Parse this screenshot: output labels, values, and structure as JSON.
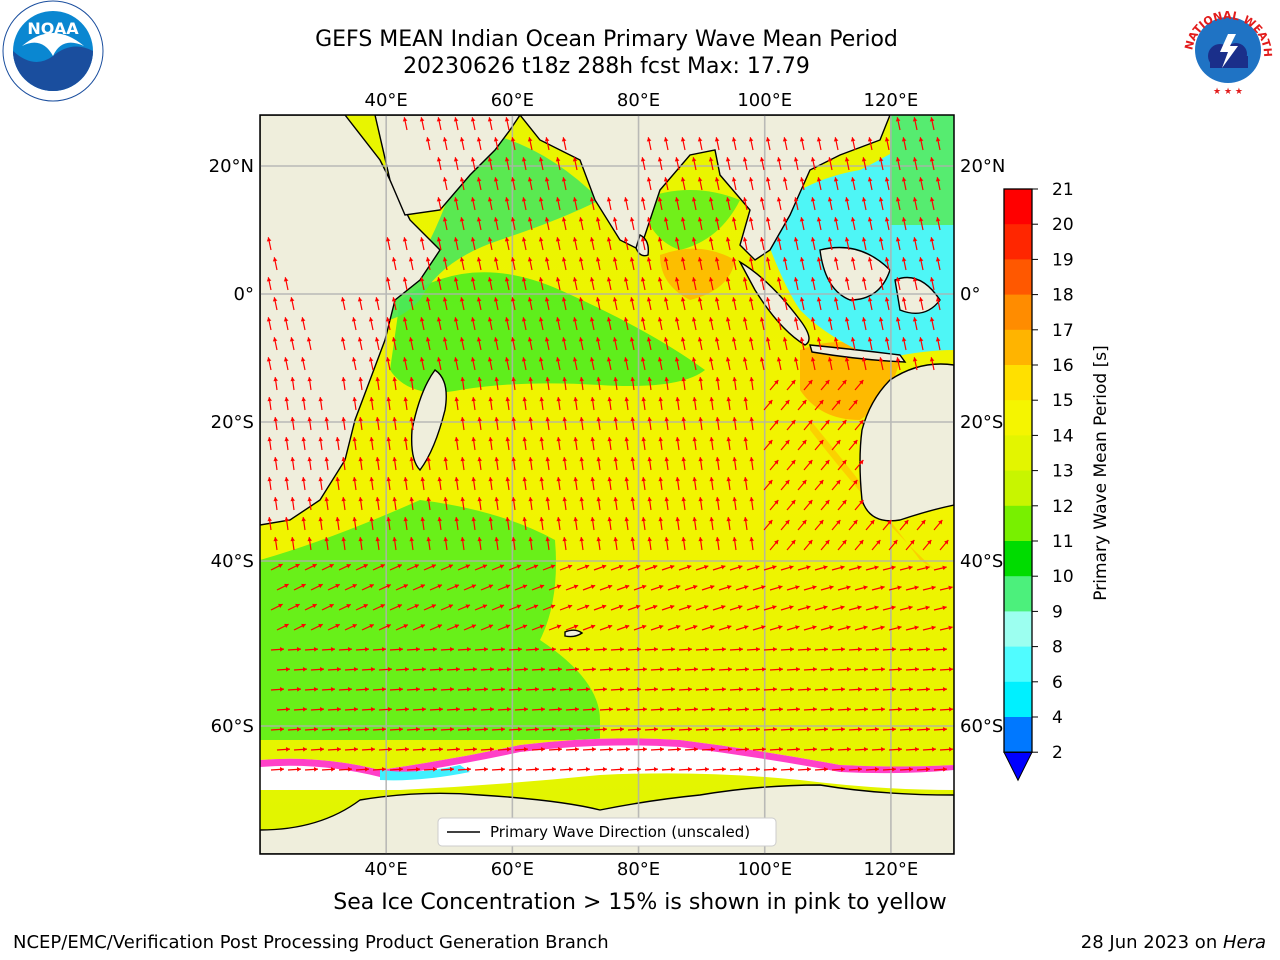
{
  "title": {
    "line1": "GEFS MEAN Indian Ocean Primary Wave Mean Period",
    "line2": "20230626 t18z 288h fcst   Max: 17.79"
  },
  "map": {
    "lon_labels": [
      "40°E",
      "60°E",
      "80°E",
      "100°E",
      "120°E"
    ],
    "lat_labels": [
      "20°N",
      "0°",
      "20°S",
      "40°S",
      "60°S"
    ],
    "lon_values": [
      40,
      60,
      80,
      100,
      120
    ],
    "lat_values": [
      20,
      0,
      -20,
      -40,
      -60
    ],
    "lon_range": [
      20,
      130
    ],
    "lat_range": [
      -75,
      28
    ],
    "legend_label": "Primary Wave Direction (unscaled)",
    "colors": {
      "land": "#efeedc",
      "arrow": "#ff0000",
      "ice_free": "#ffffff"
    }
  },
  "colorbar": {
    "label": "Primary Wave Mean Period [s]",
    "ticks": [
      "21",
      "20",
      "19",
      "18",
      "17",
      "16",
      "15",
      "14",
      "13",
      "12",
      "11",
      "10",
      "9",
      "8",
      "6",
      "4",
      "2"
    ],
    "colors": [
      "#ff0000",
      "#ff2600",
      "#ff5800",
      "#ff8c00",
      "#ffb400",
      "#ffe000",
      "#f5f500",
      "#e3f500",
      "#c8f500",
      "#78f000",
      "#00dc00",
      "#4cf07c",
      "#9cfff0",
      "#50fcff",
      "#00f0ff",
      "#0078ff"
    ],
    "extend_color": "#0000ff"
  },
  "seaice_note": "Sea Ice Concentration > 15% is shown in pink to yellow",
  "footer": {
    "left": "NCEP/EMC/Verification Post Processing Product Generation Branch",
    "right_date": "28 Jun 2023 on ",
    "right_machine": "Hera"
  },
  "logos": {
    "noaa_text": "NOAA",
    "nws_text": "NATIONAL WEATHER SERVICE"
  }
}
